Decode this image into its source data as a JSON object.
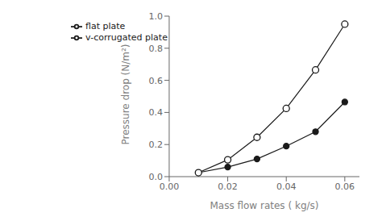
{
  "chart_data": {
    "type": "line",
    "x": [
      0.01,
      0.02,
      0.03,
      0.04,
      0.05,
      0.06
    ],
    "series": [
      {
        "name": "flat plate",
        "color": "#1a1a1a",
        "marker": "circle",
        "values": [
          0.025,
          0.06,
          0.11,
          0.19,
          0.28,
          0.465
        ]
      },
      {
        "name": "v-corrugated plate",
        "color": "#1a1a1a",
        "marker": "open_circle",
        "values": [
          0.025,
          0.105,
          0.245,
          0.425,
          0.665,
          0.95
        ]
      }
    ],
    "x_label": "Mass flow rates  ( kg/s)",
    "y_label": "Pressure drop  (N/m²)",
    "xlim": [
      0.0,
      0.065
    ],
    "ylim": [
      0.0,
      1.0
    ],
    "xticks": [
      {
        "value": 0,
        "label": "0.00"
      },
      0.02,
      0.04,
      0.06
    ],
    "yticks": [
      {
        "value": 0,
        "label": "0.0"
      },
      0.2,
      0.4,
      0.6,
      0.8,
      {
        "value": 1,
        "label": "1.0"
      }
    ],
    "grid": false,
    "legend": "upper left"
  }
}
